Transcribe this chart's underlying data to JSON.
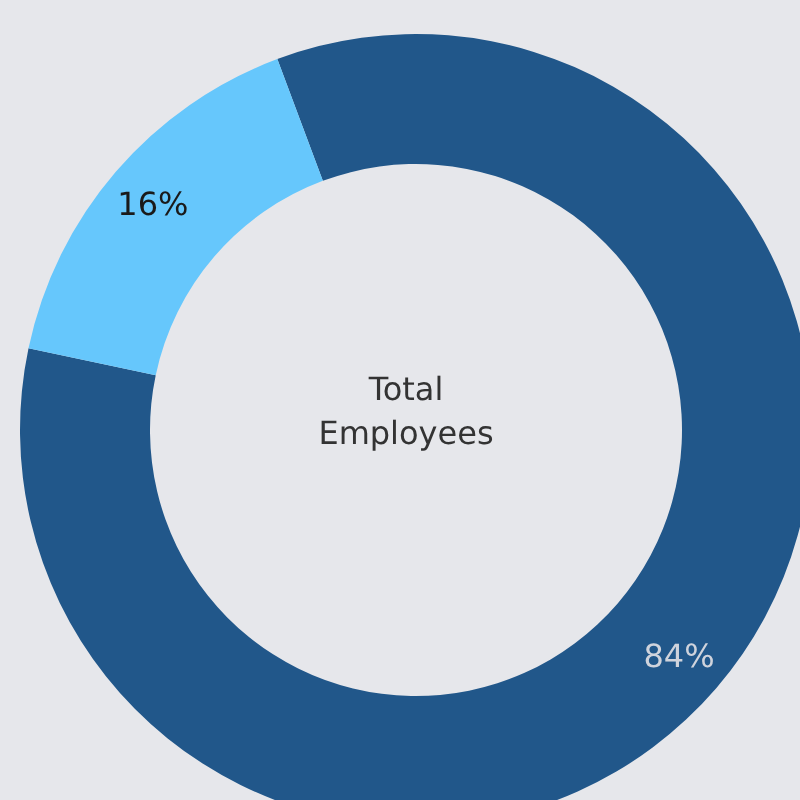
{
  "chart_data": {
    "type": "donut",
    "title": "Total Employees",
    "categories": [
      null,
      null
    ],
    "values": [
      84,
      16
    ],
    "colors": [
      "#21578a",
      "#66c7fc"
    ],
    "value_labels": [
      "84%",
      "16%"
    ]
  }
}
